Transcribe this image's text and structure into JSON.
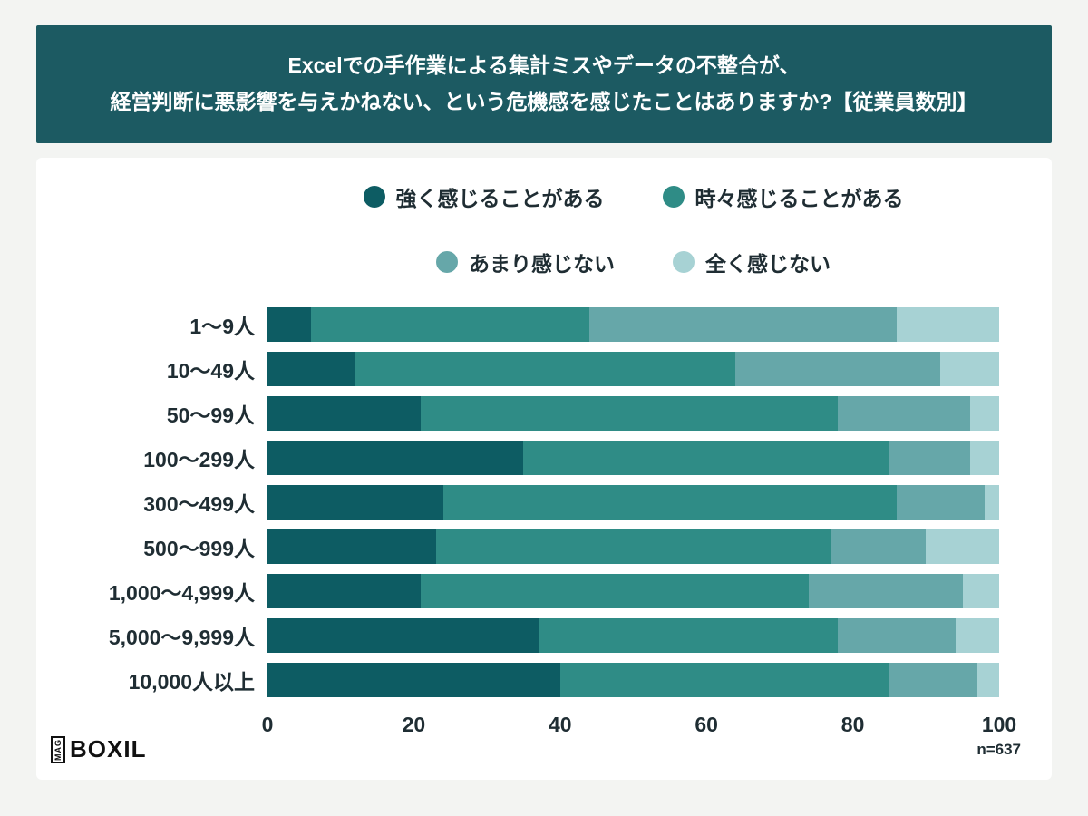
{
  "header": {
    "title_line1": "Excelでの手作業による集計ミスやデータの不整合が、",
    "title_line2": "経営判断に悪影響を与えかねない、という危機感を感じたことはありますか?【従業員数別】"
  },
  "footer": {
    "logo_mag": "MAG",
    "logo_boxil": "BOXIL",
    "sample_size": "n=637"
  },
  "colors": {
    "banner_background": "#1c5a62",
    "page_background": "#f3f4f2",
    "card_background": "#ffffff",
    "text": "#1f2d33"
  },
  "chart_data": {
    "type": "bar",
    "orientation": "horizontal-stacked-100",
    "title": "Excelでの手作業による集計ミスやデータの不整合が、経営判断に悪影響を与えかねない、という危機感を感じたことはありますか?【従業員数別】",
    "categories": [
      "1〜9人",
      "10〜49人",
      "50〜99人",
      "100〜299人",
      "300〜499人",
      "500〜999人",
      "1,000〜4,999人",
      "5,000〜9,999人",
      "10,000人以上"
    ],
    "series": [
      {
        "name": "強く感じることがある",
        "color": "#0d5c63",
        "values": [
          6,
          12,
          21,
          35,
          24,
          23,
          21,
          37,
          40
        ]
      },
      {
        "name": "時々感じることがある",
        "color": "#2f8c86",
        "values": [
          38,
          52,
          57,
          50,
          62,
          54,
          53,
          41,
          45
        ]
      },
      {
        "name": "あまり感じない",
        "color": "#66a7a9",
        "values": [
          42,
          28,
          18,
          11,
          12,
          13,
          21,
          16,
          12
        ]
      },
      {
        "name": "全く感じない",
        "color": "#a7d2d4",
        "values": [
          14,
          8,
          4,
          4,
          2,
          10,
          5,
          6,
          3
        ]
      }
    ],
    "x_ticks": [
      0,
      20,
      40,
      60,
      80,
      100
    ],
    "xlim": [
      0,
      100
    ],
    "legend_position": "top",
    "legend_rows": [
      [
        0,
        1
      ],
      [
        2,
        3
      ]
    ],
    "grid": false,
    "annotation": "n=637"
  }
}
